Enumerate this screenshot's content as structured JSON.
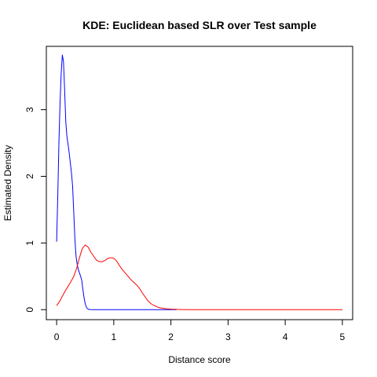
{
  "chart_data": {
    "type": "line",
    "title": "KDE: Euclidean based SLR over Test sample",
    "xlabel": "Distance score",
    "ylabel": "Estimated Density",
    "xlim": [
      -0.18,
      5.18
    ],
    "ylim": [
      -0.15,
      3.95
    ],
    "x_ticks": [
      0,
      1,
      2,
      3,
      4,
      5
    ],
    "y_ticks": [
      0,
      1,
      2,
      3
    ],
    "grid": false,
    "legend": "none",
    "series": [
      {
        "color": "#0000ff",
        "x": [
          0.0,
          0.02,
          0.04,
          0.06,
          0.08,
          0.1,
          0.12,
          0.14,
          0.16,
          0.18,
          0.2,
          0.22,
          0.24,
          0.26,
          0.28,
          0.3,
          0.32,
          0.34,
          0.36,
          0.38,
          0.4,
          0.42,
          0.44,
          0.46,
          0.48,
          0.5,
          0.52,
          0.54,
          0.56,
          0.58,
          0.6,
          0.65,
          0.7,
          0.8,
          0.9,
          1.0,
          1.2,
          1.4,
          1.6,
          1.8,
          2.0,
          2.1
        ],
        "y": [
          1.02,
          1.7,
          2.5,
          3.1,
          3.55,
          3.82,
          3.72,
          3.3,
          2.82,
          2.6,
          2.48,
          2.35,
          2.2,
          2.05,
          1.85,
          1.45,
          1.05,
          0.8,
          0.68,
          0.6,
          0.55,
          0.5,
          0.44,
          0.3,
          0.18,
          0.09,
          0.04,
          0.015,
          0.005,
          0.002,
          0.001,
          0.0,
          0.0,
          0.0,
          0.0,
          0.0,
          0.0,
          0.0,
          0.0,
          0.0,
          0.0,
          0.0
        ]
      },
      {
        "color": "#ff0000",
        "x": [
          0.0,
          0.05,
          0.1,
          0.15,
          0.2,
          0.25,
          0.3,
          0.35,
          0.4,
          0.45,
          0.5,
          0.55,
          0.6,
          0.65,
          0.7,
          0.75,
          0.8,
          0.85,
          0.9,
          0.95,
          1.0,
          1.05,
          1.1,
          1.15,
          1.2,
          1.25,
          1.3,
          1.35,
          1.4,
          1.45,
          1.5,
          1.55,
          1.6,
          1.65,
          1.7,
          1.75,
          1.8,
          1.9,
          2.0,
          2.1,
          2.2,
          2.4,
          2.6,
          2.8,
          3.0,
          3.5,
          4.0,
          4.5,
          5.0
        ],
        "y": [
          0.06,
          0.12,
          0.2,
          0.28,
          0.35,
          0.42,
          0.5,
          0.62,
          0.78,
          0.92,
          0.97,
          0.94,
          0.86,
          0.8,
          0.74,
          0.72,
          0.72,
          0.74,
          0.77,
          0.78,
          0.77,
          0.73,
          0.66,
          0.6,
          0.55,
          0.5,
          0.45,
          0.41,
          0.37,
          0.32,
          0.25,
          0.19,
          0.13,
          0.09,
          0.065,
          0.045,
          0.03,
          0.015,
          0.008,
          0.004,
          0.002,
          0.0,
          0.0,
          0.0,
          0.0,
          0.0,
          0.0,
          0.0,
          0.0
        ]
      }
    ]
  }
}
